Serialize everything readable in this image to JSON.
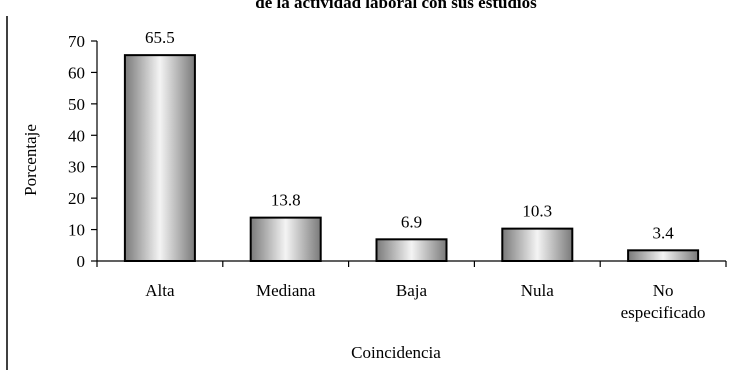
{
  "chart_data": {
    "type": "bar",
    "title": "de la actividad laboral con sus estudios",
    "xlabel": "Coincidencia",
    "ylabel": "Porcentaje",
    "categories": [
      [
        "Alta"
      ],
      [
        "Mediana"
      ],
      [
        "Baja"
      ],
      [
        "Nula"
      ],
      [
        "No",
        "especificado"
      ]
    ],
    "values": [
      65.5,
      13.8,
      6.9,
      10.3,
      3.4
    ],
    "data_labels": [
      "65.5",
      "13.8",
      "6.9",
      "10.3",
      "3.4"
    ],
    "ylim": [
      0,
      70
    ],
    "yticks": [
      0,
      10,
      20,
      30,
      40,
      50,
      60,
      70
    ],
    "grid": false,
    "legend": "none",
    "colors": {
      "bar_dark": "#7a7a7a",
      "bar_light": "#f4f4f4",
      "bar_stroke": "#000000",
      "axis": "#000000",
      "background": "#ffffff"
    }
  }
}
